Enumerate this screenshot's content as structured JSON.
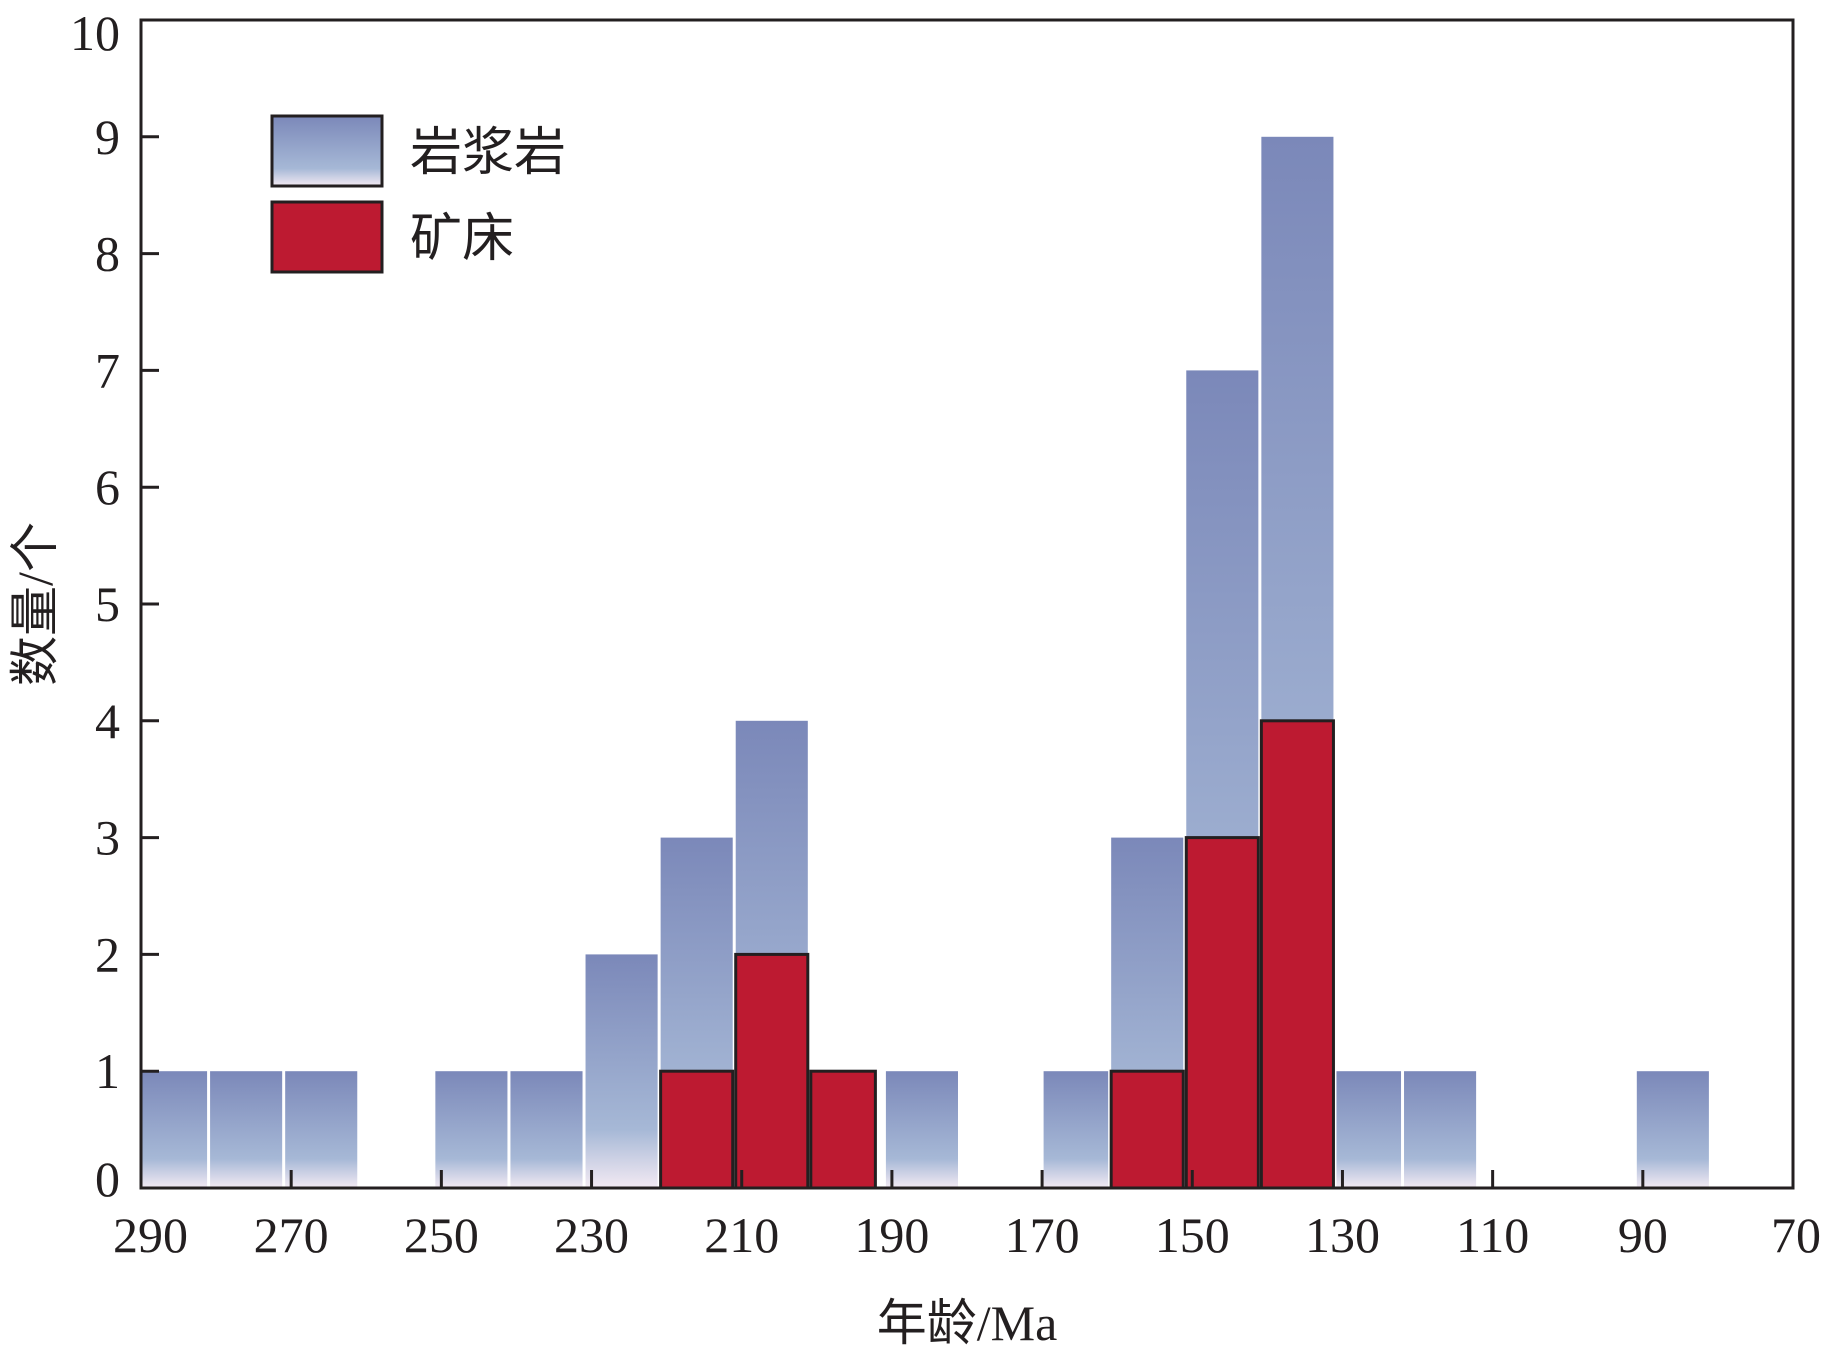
{
  "chart_data": {
    "type": "bar",
    "xlabel": "年龄/Ma",
    "ylabel": "数量/个",
    "xlim": [
      290,
      70
    ],
    "ylim": [
      0,
      10
    ],
    "x_ticks": [
      290,
      270,
      250,
      230,
      210,
      190,
      170,
      150,
      130,
      110,
      90,
      70
    ],
    "y_ticks": [
      0,
      1,
      2,
      3,
      4,
      5,
      6,
      7,
      8,
      9,
      10
    ],
    "legend_position": "top-left",
    "grid": false,
    "series": [
      {
        "name": "岩浆岩",
        "color_top": "#7b88b9",
        "color_bottom": "#f3eaf3",
        "bars": [
          {
            "x0": 290,
            "x1": 281,
            "value": 1
          },
          {
            "x0": 281,
            "x1": 271,
            "value": 1
          },
          {
            "x0": 271,
            "x1": 261,
            "value": 1
          },
          {
            "x0": 251,
            "x1": 241,
            "value": 1
          },
          {
            "x0": 241,
            "x1": 231,
            "value": 1
          },
          {
            "x0": 231,
            "x1": 221,
            "value": 2
          },
          {
            "x0": 221,
            "x1": 211,
            "value": 3
          },
          {
            "x0": 211,
            "x1": 201,
            "value": 4
          },
          {
            "x0": 191,
            "x1": 181,
            "value": 1
          },
          {
            "x0": 170,
            "x1": 161,
            "value": 1
          },
          {
            "x0": 161,
            "x1": 151,
            "value": 3
          },
          {
            "x0": 151,
            "x1": 141,
            "value": 7
          },
          {
            "x0": 141,
            "x1": 131,
            "value": 9
          },
          {
            "x0": 131,
            "x1": 122,
            "value": 1
          },
          {
            "x0": 122,
            "x1": 112,
            "value": 1
          },
          {
            "x0": 91,
            "x1": 81,
            "value": 1
          }
        ]
      },
      {
        "name": "矿床",
        "color": "#bd1a31",
        "bars": [
          {
            "x0": 221,
            "x1": 211,
            "value": 1
          },
          {
            "x0": 211,
            "x1": 201,
            "value": 2
          },
          {
            "x0": 201,
            "x1": 192,
            "value": 1
          },
          {
            "x0": 161,
            "x1": 151,
            "value": 1
          },
          {
            "x0": 151,
            "x1": 141,
            "value": 3
          },
          {
            "x0": 141,
            "x1": 131,
            "value": 4
          }
        ]
      }
    ]
  }
}
